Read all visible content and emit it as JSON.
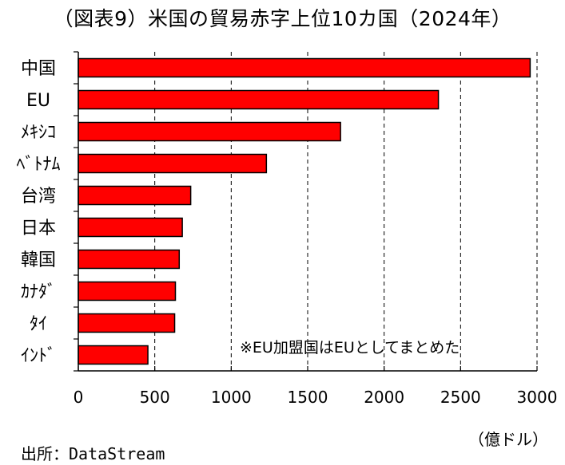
{
  "title": "（図表9）米国の貿易赤字上位10カ国（2024年）",
  "note": "※EU加盟国はEUとしてまとめた",
  "unit": "（億ドル）",
  "source": "出所：DataStream",
  "colors": {
    "bar": "#ff0000",
    "bar_stroke": "#000000",
    "grid": "#000000"
  },
  "chart_data": {
    "type": "bar",
    "orientation": "horizontal",
    "categories": [
      "中国",
      "EU",
      "ﾒｷｼｺ",
      "ﾍﾞﾄﾅﾑ",
      "台湾",
      "日本",
      "韓国",
      "ｶﾅﾀﾞ",
      "ﾀｲ",
      "ｲﾝﾄﾞ"
    ],
    "values": [
      2955,
      2355,
      1715,
      1230,
      735,
      680,
      660,
      635,
      630,
      455
    ],
    "xlim": [
      0,
      3000
    ],
    "xticks": [
      0,
      500,
      1000,
      1500,
      2000,
      2500,
      3000
    ],
    "xlabel": "（億ドル）",
    "grid": "vertical dashed",
    "legend": "none"
  }
}
